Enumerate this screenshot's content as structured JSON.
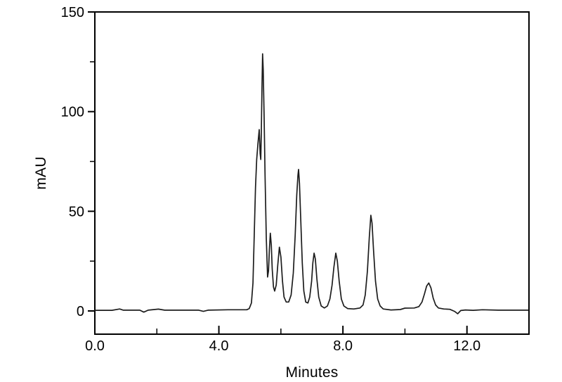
{
  "figure": {
    "background": "#ffffff",
    "trace_color": "#1c1c1c",
    "axis_color": "#000000"
  },
  "chart_data": {
    "type": "line",
    "title": "",
    "xlabel": "Minutes",
    "ylabel": "mAU",
    "xlim": [
      0.0,
      14.0
    ],
    "ylim": [
      -11.6,
      150
    ],
    "grid": false,
    "legend": null,
    "x_major_ticks": [
      0.0,
      4.0,
      8.0,
      12.0
    ],
    "x_major_tick_labels": [
      "0.0",
      "4.0",
      "8.0",
      "12.0"
    ],
    "x_minor_ticks": [
      2.0,
      6.0,
      10.0
    ],
    "y_major_ticks": [
      0,
      50,
      100,
      150
    ],
    "y_major_tick_labels": [
      "0",
      "50",
      "100",
      "150"
    ],
    "y_minor_ticks": [
      25,
      75,
      125
    ],
    "peaks": [
      {
        "t": 5.3,
        "mAU": 91
      },
      {
        "t": 5.41,
        "mAU": 129
      },
      {
        "t": 5.66,
        "mAU": 39
      },
      {
        "t": 5.95,
        "mAU": 32
      },
      {
        "t": 6.57,
        "mAU": 71
      },
      {
        "t": 7.07,
        "mAU": 29
      },
      {
        "t": 7.77,
        "mAU": 29
      },
      {
        "t": 8.9,
        "mAU": 48
      },
      {
        "t": 10.77,
        "mAU": 14
      }
    ],
    "trace": [
      [
        0.0,
        0.3
      ],
      [
        0.55,
        0.3
      ],
      [
        0.8,
        1.0
      ],
      [
        0.92,
        0.4
      ],
      [
        1.45,
        0.4
      ],
      [
        1.58,
        -0.6
      ],
      [
        1.72,
        0.4
      ],
      [
        2.05,
        0.9
      ],
      [
        2.25,
        0.4
      ],
      [
        3.35,
        0.4
      ],
      [
        3.5,
        -0.2
      ],
      [
        3.65,
        0.4
      ],
      [
        4.3,
        0.6
      ],
      [
        4.9,
        0.6
      ],
      [
        4.98,
        1.2
      ],
      [
        5.05,
        4
      ],
      [
        5.1,
        14
      ],
      [
        5.14,
        38
      ],
      [
        5.18,
        62
      ],
      [
        5.22,
        76
      ],
      [
        5.26,
        84
      ],
      [
        5.3,
        91
      ],
      [
        5.33,
        79
      ],
      [
        5.35,
        76
      ],
      [
        5.37,
        90
      ],
      [
        5.39,
        112
      ],
      [
        5.41,
        129
      ],
      [
        5.43,
        121
      ],
      [
        5.46,
        97
      ],
      [
        5.49,
        68
      ],
      [
        5.53,
        36
      ],
      [
        5.57,
        17
      ],
      [
        5.6,
        20
      ],
      [
        5.63,
        31
      ],
      [
        5.66,
        39
      ],
      [
        5.69,
        33
      ],
      [
        5.72,
        21
      ],
      [
        5.76,
        12
      ],
      [
        5.8,
        10
      ],
      [
        5.85,
        13
      ],
      [
        5.9,
        23
      ],
      [
        5.95,
        32
      ],
      [
        6.0,
        27
      ],
      [
        6.05,
        15
      ],
      [
        6.1,
        7
      ],
      [
        6.17,
        4.5
      ],
      [
        6.25,
        4.5
      ],
      [
        6.33,
        8
      ],
      [
        6.4,
        19
      ],
      [
        6.46,
        38
      ],
      [
        6.51,
        58
      ],
      [
        6.55,
        68
      ],
      [
        6.57,
        71
      ],
      [
        6.6,
        64
      ],
      [
        6.64,
        46
      ],
      [
        6.69,
        24
      ],
      [
        6.74,
        10
      ],
      [
        6.8,
        4.5
      ],
      [
        6.87,
        4
      ],
      [
        6.93,
        7
      ],
      [
        6.99,
        15
      ],
      [
        7.03,
        24
      ],
      [
        7.07,
        29
      ],
      [
        7.11,
        26
      ],
      [
        7.16,
        16
      ],
      [
        7.22,
        7
      ],
      [
        7.3,
        2.5
      ],
      [
        7.4,
        1.5
      ],
      [
        7.5,
        2.5
      ],
      [
        7.58,
        6
      ],
      [
        7.65,
        13
      ],
      [
        7.71,
        22
      ],
      [
        7.77,
        29
      ],
      [
        7.82,
        25
      ],
      [
        7.88,
        15
      ],
      [
        7.95,
        6
      ],
      [
        8.03,
        2.5
      ],
      [
        8.15,
        1.2
      ],
      [
        8.35,
        1.0
      ],
      [
        8.55,
        1.5
      ],
      [
        8.65,
        3
      ],
      [
        8.72,
        8
      ],
      [
        8.79,
        20
      ],
      [
        8.85,
        37
      ],
      [
        8.9,
        48
      ],
      [
        8.94,
        44
      ],
      [
        8.99,
        30
      ],
      [
        9.05,
        15
      ],
      [
        9.12,
        6
      ],
      [
        9.2,
        2.5
      ],
      [
        9.3,
        1.0
      ],
      [
        9.55,
        0.5
      ],
      [
        9.85,
        0.7
      ],
      [
        10.0,
        1.4
      ],
      [
        10.3,
        1.5
      ],
      [
        10.45,
        2.2
      ],
      [
        10.55,
        4.5
      ],
      [
        10.63,
        8.5
      ],
      [
        10.7,
        12.5
      ],
      [
        10.77,
        14
      ],
      [
        10.84,
        11.5
      ],
      [
        10.91,
        6.5
      ],
      [
        10.99,
        3
      ],
      [
        11.08,
        1.5
      ],
      [
        11.25,
        1.0
      ],
      [
        11.45,
        0.8
      ],
      [
        11.6,
        -0.2
      ],
      [
        11.7,
        -1.4
      ],
      [
        11.8,
        0.2
      ],
      [
        11.95,
        0.5
      ],
      [
        12.2,
        0.3
      ],
      [
        12.5,
        0.6
      ],
      [
        13.0,
        0.4
      ],
      [
        13.5,
        0.4
      ],
      [
        13.97,
        0.4
      ]
    ]
  }
}
